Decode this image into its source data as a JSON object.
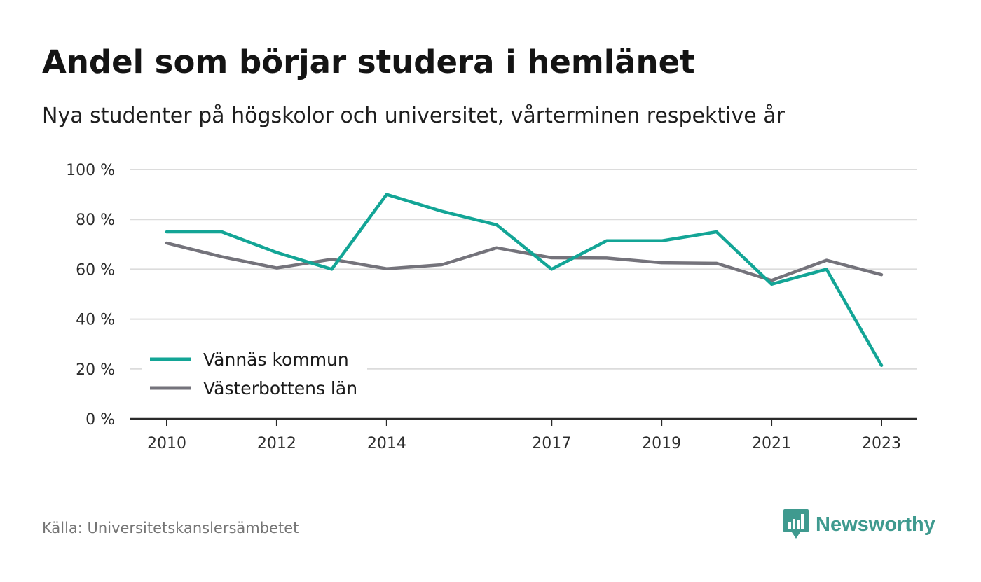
{
  "title": "Andel som börjar studera i hemlänet",
  "subtitle": "Nya studenter på högskolor och universitet, vårterminen respektive år",
  "source": "Källa: Universitetskanslersämbetet",
  "brand": {
    "name": "Newsworthy",
    "icon": "newsworthy-logo-icon",
    "color": "#3f9a8f"
  },
  "chart_data": {
    "type": "line",
    "x": [
      2010,
      2011,
      2012,
      2013,
      2014,
      2015,
      2016,
      2017,
      2018,
      2019,
      2020,
      2021,
      2022,
      2023
    ],
    "x_ticks": [
      2010,
      2012,
      2014,
      2017,
      2019,
      2021,
      2023
    ],
    "x_tick_labels": [
      "2010",
      "2012",
      "2014",
      "2017",
      "2019",
      "2021",
      "2023"
    ],
    "ylim": [
      0,
      100
    ],
    "y_ticks": [
      0,
      20,
      40,
      60,
      80,
      100
    ],
    "y_tick_labels": [
      "0 %",
      "20 %",
      "40 %",
      "60 %",
      "80 %",
      "100 %"
    ],
    "grid": true,
    "legend_position": "bottom-left",
    "series": [
      {
        "name": "Vännäs kommun",
        "color": "#13a596",
        "values": [
          75,
          75,
          66.7,
          60,
          90,
          83.3,
          77.8,
          60,
          71.4,
          71.4,
          75,
          54,
          60,
          21.4
        ]
      },
      {
        "name": "Västerbottens län",
        "color": "#74737b",
        "values": [
          70.5,
          65,
          60.5,
          64,
          60.2,
          61.8,
          68.6,
          64.6,
          64.5,
          62.6,
          62.4,
          55.5,
          63.6,
          57.8
        ]
      }
    ]
  }
}
